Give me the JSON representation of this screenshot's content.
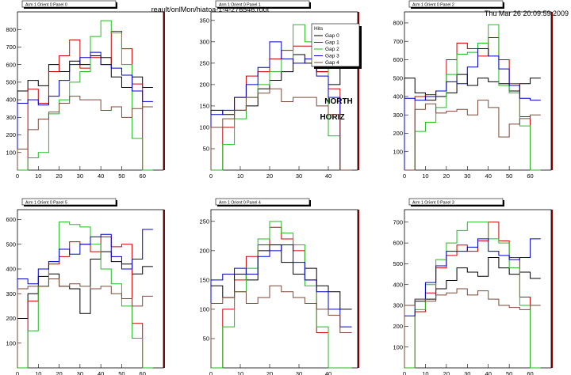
{
  "header": {
    "file": "reault/onlMon/hiatoa-1-4-276546.root",
    "timestamp": "Thu Mar 26 20:09:59 2009"
  },
  "overlay": {
    "line1": "NORTH",
    "line2": "HORIZ"
  },
  "legend": {
    "title": "Hits",
    "entries": [
      "Gap 0",
      "Gap 1",
      "Gap 2",
      "Gap 3",
      "Gap 4"
    ]
  },
  "colors": {
    "Gap 0": "#000000",
    "Gap 1": "#cc0000",
    "Gap 2": "#22bb22",
    "Gap 3": "#0000cc",
    "Gap 4": "#7a4a3a",
    "frame_shadow": "#990000"
  },
  "chart_data": [
    {
      "type": "line",
      "title": "Arm 1 Orient 0 Panel 0",
      "xlim": [
        0,
        70
      ],
      "ylim": [
        0,
        900
      ],
      "xticks": [
        0,
        10,
        20,
        30,
        40,
        50,
        60
      ],
      "yticks": [
        100,
        200,
        300,
        400,
        500,
        600,
        700,
        800
      ],
      "series": [
        {
          "name": "Gap 0",
          "x": [
            0,
            5,
            10,
            15,
            20,
            25,
            30,
            35,
            40,
            45,
            50,
            55,
            60
          ],
          "values": [
            450,
            510,
            480,
            600,
            560,
            620,
            600,
            650,
            640,
            530,
            470,
            530,
            470
          ]
        },
        {
          "name": "Gap 1",
          "x": [
            0,
            5,
            10,
            15,
            20,
            25,
            30,
            35,
            40,
            45,
            50,
            55,
            60
          ],
          "values": [
            0,
            460,
            380,
            560,
            650,
            740,
            580,
            640,
            600,
            790,
            690,
            490,
            0
          ]
        },
        {
          "name": "Gap 2",
          "x": [
            0,
            5,
            10,
            15,
            20,
            25,
            30,
            35,
            40,
            45,
            50,
            55,
            60
          ],
          "values": [
            0,
            70,
            100,
            320,
            400,
            500,
            560,
            760,
            850,
            780,
            600,
            180,
            0
          ]
        },
        {
          "name": "Gap 3",
          "x": [
            0,
            5,
            10,
            15,
            20,
            25,
            30,
            35,
            40,
            45,
            50,
            55,
            60
          ],
          "values": [
            380,
            400,
            370,
            420,
            510,
            600,
            640,
            670,
            600,
            580,
            540,
            450,
            390
          ]
        },
        {
          "name": "Gap 4",
          "x": [
            0,
            5,
            10,
            15,
            20,
            25,
            30,
            35,
            40,
            45,
            50,
            55,
            60
          ],
          "values": [
            120,
            230,
            290,
            330,
            380,
            420,
            400,
            400,
            340,
            360,
            300,
            350,
            360
          ]
        }
      ]
    },
    {
      "type": "line",
      "title": "Arm 1 Orient 0 Panel 1",
      "xlim": [
        0,
        50
      ],
      "ylim": [
        0,
        370
      ],
      "xticks": [
        0,
        10,
        20,
        30,
        40
      ],
      "yticks": [
        50,
        100,
        150,
        200,
        250,
        300,
        350
      ],
      "series": [
        {
          "name": "Gap 0",
          "x": [
            0,
            4,
            8,
            12,
            16,
            20,
            24,
            28,
            32,
            36,
            40,
            44
          ],
          "values": [
            140,
            130,
            140,
            150,
            190,
            210,
            230,
            270,
            250,
            230,
            200,
            240
          ]
        },
        {
          "name": "Gap 1",
          "x": [
            0,
            4,
            8,
            12,
            16,
            20,
            24,
            28,
            32,
            36,
            40,
            44
          ],
          "values": [
            0,
            100,
            170,
            220,
            230,
            260,
            280,
            290,
            290,
            230,
            190,
            0
          ]
        },
        {
          "name": "Gap 2",
          "x": [
            0,
            4,
            8,
            12,
            16,
            20,
            24,
            28,
            32,
            36,
            40,
            44
          ],
          "values": [
            0,
            60,
            120,
            170,
            200,
            230,
            260,
            340,
            300,
            260,
            80,
            0
          ]
        },
        {
          "name": "Gap 3",
          "x": [
            0,
            4,
            8,
            12,
            16,
            20,
            24,
            28,
            32,
            36,
            40,
            44
          ],
          "values": [
            130,
            140,
            170,
            200,
            240,
            300,
            260,
            250,
            260,
            220,
            170,
            0
          ]
        },
        {
          "name": "Gap 4",
          "x": [
            0,
            4,
            8,
            12,
            16,
            20,
            24,
            28,
            32,
            36,
            40,
            44
          ],
          "values": [
            100,
            120,
            140,
            170,
            180,
            190,
            160,
            170,
            170,
            150,
            130,
            0
          ]
        }
      ]
    },
    {
      "type": "line",
      "title": "Arm 1 Orient 0 Panel 2",
      "xlim": [
        0,
        70
      ],
      "ylim": [
        0,
        860
      ],
      "xticks": [
        0,
        10,
        20,
        30,
        40,
        50,
        60
      ],
      "yticks": [
        100,
        200,
        300,
        400,
        500,
        600,
        700,
        800
      ],
      "series": [
        {
          "name": "Gap 0",
          "x": [
            0,
            5,
            10,
            15,
            20,
            25,
            30,
            35,
            40,
            45,
            50,
            55,
            60
          ],
          "values": [
            500,
            420,
            380,
            400,
            420,
            520,
            460,
            500,
            480,
            470,
            430,
            470,
            500
          ]
        },
        {
          "name": "Gap 1",
          "x": [
            0,
            5,
            10,
            15,
            20,
            25,
            30,
            35,
            40,
            45,
            50,
            55,
            60
          ],
          "values": [
            0,
            400,
            410,
            430,
            600,
            690,
            660,
            620,
            720,
            600,
            470,
            290,
            0
          ]
        },
        {
          "name": "Gap 2",
          "x": [
            0,
            5,
            10,
            15,
            20,
            25,
            30,
            35,
            40,
            45,
            50,
            55,
            60
          ],
          "values": [
            0,
            210,
            260,
            340,
            520,
            630,
            640,
            690,
            790,
            460,
            420,
            240,
            0
          ]
        },
        {
          "name": "Gap 3",
          "x": [
            0,
            5,
            10,
            15,
            20,
            25,
            30,
            35,
            40,
            45,
            50,
            55,
            60
          ],
          "values": [
            390,
            380,
            400,
            430,
            480,
            470,
            560,
            660,
            620,
            550,
            460,
            390,
            380
          ]
        },
        {
          "name": "Gap 4",
          "x": [
            0,
            5,
            10,
            15,
            20,
            25,
            30,
            35,
            40,
            45,
            50,
            55,
            60
          ],
          "values": [
            0,
            330,
            360,
            310,
            320,
            330,
            300,
            380,
            340,
            180,
            250,
            280,
            300
          ]
        }
      ]
    },
    {
      "type": "line",
      "title": "Arm 1 Orient 0 Panel 5",
      "xlim": [
        0,
        70
      ],
      "ylim": [
        0,
        640
      ],
      "xticks": [
        0,
        10,
        20,
        30,
        40,
        50,
        60
      ],
      "yticks": [
        100,
        200,
        300,
        400,
        500,
        600
      ],
      "series": [
        {
          "name": "Gap 0",
          "x": [
            0,
            5,
            10,
            15,
            20,
            25,
            30,
            35,
            40,
            45,
            50,
            55,
            60
          ],
          "values": [
            200,
            300,
            370,
            380,
            330,
            320,
            220,
            440,
            470,
            430,
            420,
            380,
            410
          ]
        },
        {
          "name": "Gap 1",
          "x": [
            0,
            5,
            10,
            15,
            20,
            25,
            30,
            35,
            40,
            45,
            50,
            55,
            60
          ],
          "values": [
            0,
            270,
            330,
            420,
            450,
            510,
            500,
            470,
            530,
            490,
            500,
            180,
            0
          ]
        },
        {
          "name": "Gap 2",
          "x": [
            0,
            5,
            10,
            15,
            20,
            25,
            30,
            35,
            40,
            45,
            50,
            55,
            60
          ],
          "values": [
            0,
            150,
            330,
            430,
            590,
            580,
            570,
            500,
            400,
            340,
            250,
            120,
            0
          ]
        },
        {
          "name": "Gap 3",
          "x": [
            0,
            5,
            10,
            15,
            20,
            25,
            30,
            35,
            40,
            45,
            50,
            55,
            60
          ],
          "values": [
            360,
            340,
            400,
            430,
            480,
            460,
            500,
            530,
            540,
            450,
            400,
            440,
            560
          ]
        },
        {
          "name": "Gap 4",
          "x": [
            0,
            5,
            10,
            15,
            20,
            25,
            30,
            35,
            40,
            45,
            50,
            55,
            60
          ],
          "values": [
            320,
            330,
            330,
            360,
            330,
            340,
            330,
            320,
            330,
            300,
            280,
            250,
            290
          ]
        }
      ]
    },
    {
      "type": "line",
      "title": "Arm 1 Orient 0 Panel 4",
      "xlim": [
        0,
        50
      ],
      "ylim": [
        0,
        270
      ],
      "xticks": [
        0,
        10,
        20,
        30,
        40
      ],
      "yticks": [
        50,
        100,
        150,
        200,
        250
      ],
      "series": [
        {
          "name": "Gap 0",
          "x": [
            0,
            4,
            8,
            12,
            16,
            20,
            24,
            28,
            32,
            36,
            40,
            44
          ],
          "values": [
            140,
            120,
            160,
            150,
            200,
            210,
            180,
            160,
            170,
            140,
            130,
            100
          ]
        },
        {
          "name": "Gap 1",
          "x": [
            0,
            4,
            8,
            12,
            16,
            20,
            24,
            28,
            32,
            36,
            40,
            44
          ],
          "values": [
            0,
            100,
            150,
            190,
            210,
            240,
            220,
            200,
            150,
            60,
            0,
            0
          ]
        },
        {
          "name": "Gap 2",
          "x": [
            0,
            4,
            8,
            12,
            16,
            20,
            24,
            28,
            32,
            36,
            40,
            44
          ],
          "values": [
            0,
            70,
            130,
            170,
            220,
            250,
            230,
            210,
            140,
            70,
            0,
            0
          ]
        },
        {
          "name": "Gap 3",
          "x": [
            0,
            4,
            8,
            12,
            16,
            20,
            24,
            28,
            32,
            36,
            40,
            44
          ],
          "values": [
            150,
            160,
            170,
            160,
            190,
            200,
            210,
            180,
            150,
            130,
            100,
            70
          ]
        },
        {
          "name": "Gap 4",
          "x": [
            0,
            4,
            8,
            12,
            16,
            20,
            24,
            28,
            32,
            36,
            40,
            44
          ],
          "values": [
            110,
            120,
            130,
            110,
            120,
            140,
            130,
            120,
            110,
            100,
            90,
            60
          ]
        }
      ]
    },
    {
      "type": "line",
      "title": "Arm 1 Orient 0 Panel 3",
      "xlim": [
        0,
        70
      ],
      "ylim": [
        0,
        760
      ],
      "xticks": [
        0,
        10,
        20,
        30,
        40,
        50,
        60
      ],
      "yticks": [
        100,
        200,
        300,
        400,
        500,
        600,
        700
      ],
      "series": [
        {
          "name": "Gap 0",
          "x": [
            0,
            5,
            10,
            15,
            20,
            25,
            30,
            35,
            40,
            45,
            50,
            55,
            60
          ],
          "values": [
            300,
            320,
            330,
            380,
            420,
            480,
            460,
            440,
            530,
            480,
            450,
            460,
            430
          ]
        },
        {
          "name": "Gap 1",
          "x": [
            0,
            5,
            10,
            15,
            20,
            25,
            30,
            35,
            40,
            45,
            50,
            55,
            60
          ],
          "values": [
            0,
            270,
            360,
            480,
            540,
            590,
            560,
            610,
            700,
            610,
            530,
            340,
            0
          ]
        },
        {
          "name": "Gap 2",
          "x": [
            0,
            5,
            10,
            15,
            20,
            25,
            30,
            35,
            40,
            45,
            50,
            55,
            60
          ],
          "values": [
            0,
            280,
            400,
            520,
            600,
            660,
            700,
            700,
            620,
            600,
            480,
            300,
            0
          ]
        },
        {
          "name": "Gap 3",
          "x": [
            0,
            5,
            10,
            15,
            20,
            25,
            30,
            35,
            40,
            45,
            50,
            55,
            60
          ],
          "values": [
            250,
            330,
            410,
            490,
            560,
            560,
            580,
            620,
            560,
            540,
            520,
            530,
            620
          ]
        },
        {
          "name": "Gap 4",
          "x": [
            0,
            5,
            10,
            15,
            20,
            25,
            30,
            35,
            40,
            45,
            50,
            55,
            60
          ],
          "values": [
            300,
            330,
            320,
            350,
            360,
            380,
            350,
            370,
            330,
            300,
            290,
            280,
            300
          ]
        }
      ]
    }
  ]
}
